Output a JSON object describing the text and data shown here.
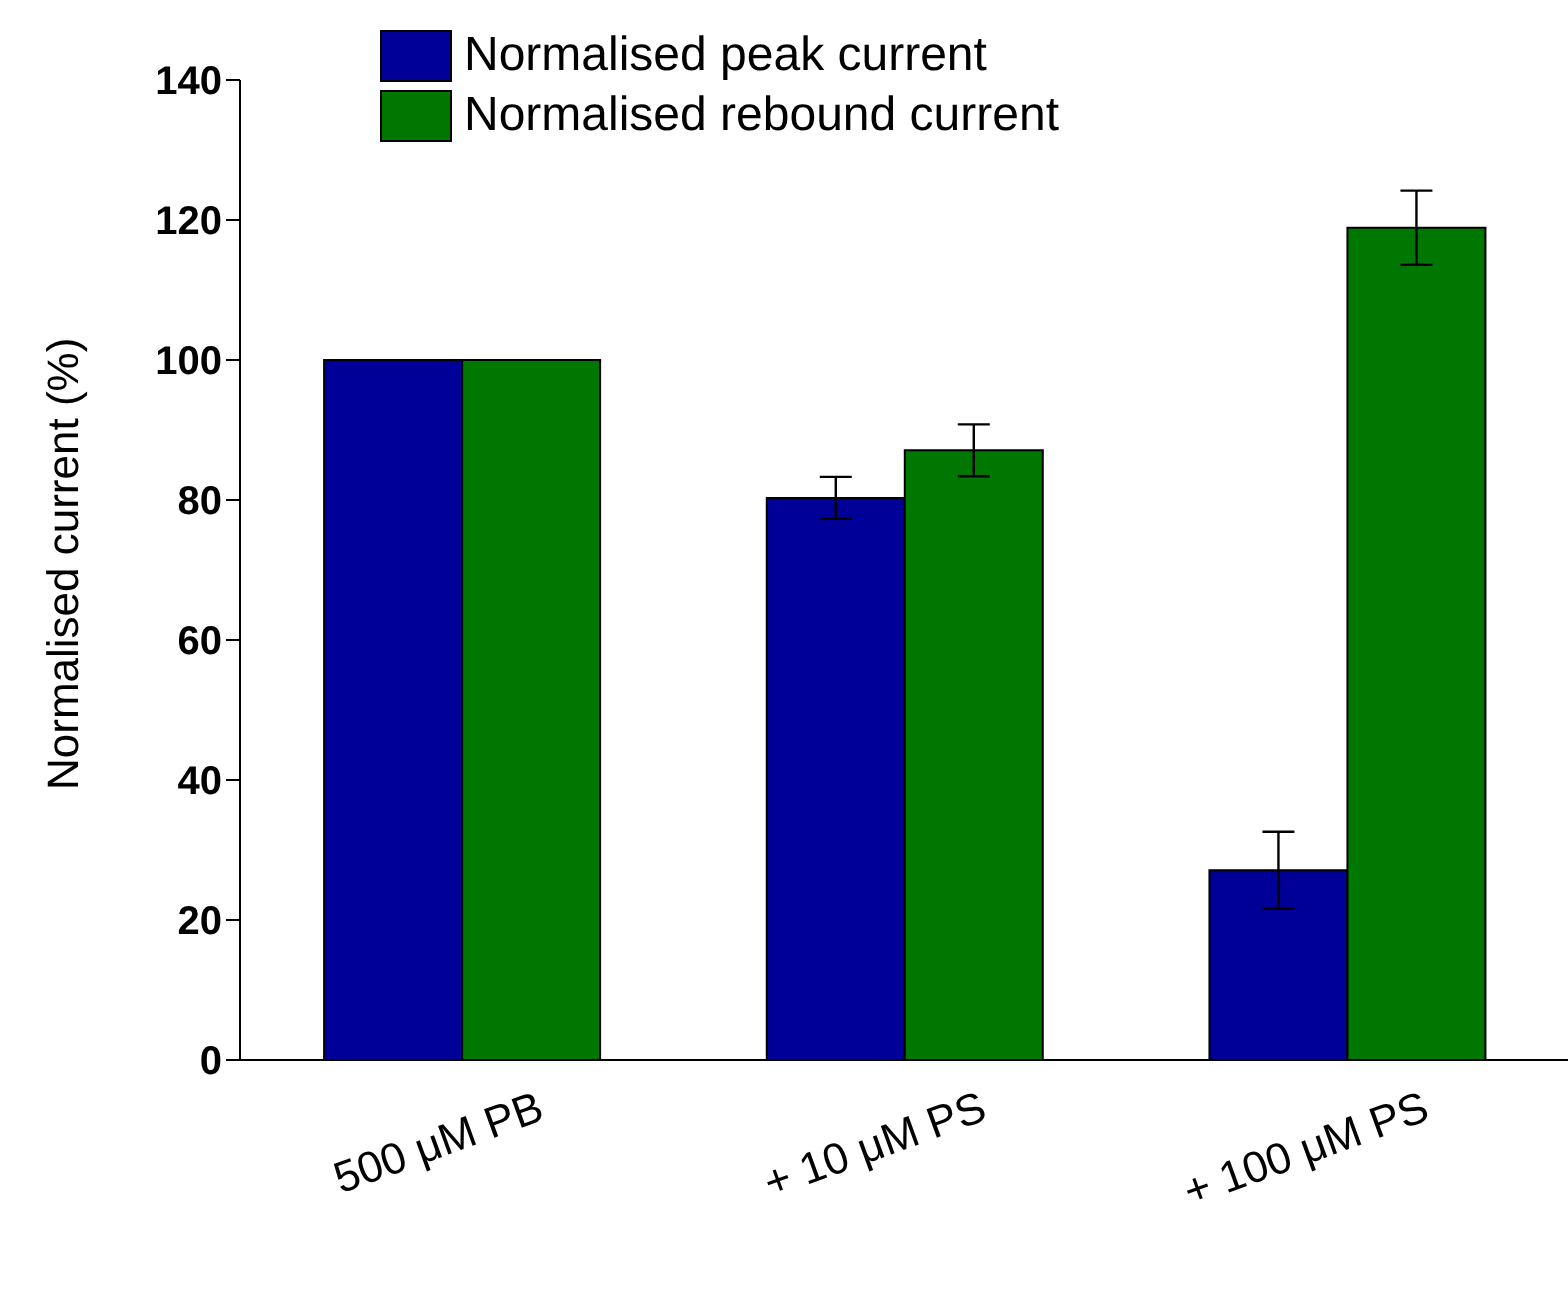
{
  "chart_data": {
    "type": "bar",
    "ylabel": "Normalised current (%)",
    "categories": [
      "500 μM PB",
      "+ 10 μM PS",
      "+ 100 μM PS"
    ],
    "series": [
      {
        "name": "Normalised peak current",
        "color": "#000099",
        "values": [
          100,
          80.3,
          27.1
        ],
        "errors": [
          null,
          3,
          5.5
        ]
      },
      {
        "name": "Normalised rebound current",
        "color": "#007700",
        "values": [
          100,
          87.1,
          118.9
        ],
        "errors": [
          null,
          3.7,
          5.3
        ]
      }
    ],
    "ylim": [
      0,
      140
    ],
    "yticks": [
      0,
      20,
      40,
      60,
      80,
      100,
      120,
      140
    ],
    "grid": false,
    "legend": "top left"
  }
}
